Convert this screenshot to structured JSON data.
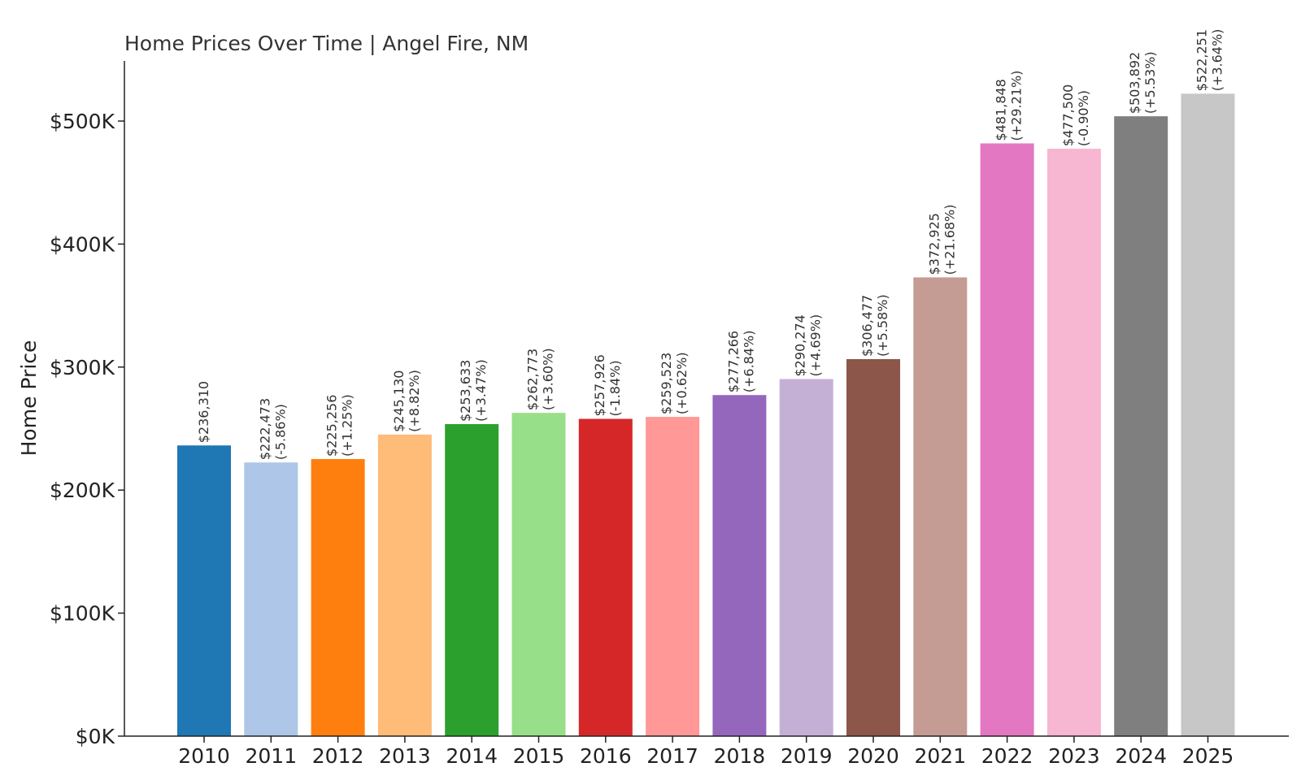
{
  "chart_data": {
    "type": "bar",
    "title": "Home Prices Over Time | Angel Fire, NM",
    "xlabel": "",
    "ylabel": "Home Price",
    "ylim": [
      0,
      550000
    ],
    "yticks": [
      0,
      100000,
      200000,
      300000,
      400000,
      500000
    ],
    "ytick_labels": [
      "$0K",
      "$100K",
      "$200K",
      "$300K",
      "$400K",
      "$500K"
    ],
    "grid": false,
    "categories": [
      "2010",
      "2011",
      "2012",
      "2013",
      "2014",
      "2015",
      "2016",
      "2017",
      "2018",
      "2019",
      "2020",
      "2021",
      "2022",
      "2023",
      "2024",
      "2025"
    ],
    "values": [
      236310,
      222473,
      225256,
      245130,
      253633,
      262773,
      257926,
      259523,
      277266,
      290274,
      306477,
      372925,
      481848,
      477500,
      503892,
      522251
    ],
    "value_labels": [
      "$236,310",
      "$222,473",
      "$225,256",
      "$245,130",
      "$253,633",
      "$262,773",
      "$257,926",
      "$259,523",
      "$277,266",
      "$290,274",
      "$306,477",
      "$372,925",
      "$481,848",
      "$477,500",
      "$503,892",
      "$522,251"
    ],
    "change_labels": [
      "",
      "(-5.86%)",
      "(+1.25%)",
      "(+8.82%)",
      "(+3.47%)",
      "(+3.60%)",
      "(-1.84%)",
      "(+0.62%)",
      "(+6.84%)",
      "(+4.69%)",
      "(+5.58%)",
      "(+21.68%)",
      "(+29.21%)",
      "(-0.90%)",
      "(+5.53%)",
      "(+3.64%)"
    ],
    "colors": [
      "#1f77b4",
      "#aec7e8",
      "#ff7f0e",
      "#ffbb78",
      "#2ca02c",
      "#98df8a",
      "#d62728",
      "#ff9896",
      "#9467bd",
      "#c5b0d5",
      "#8c564b",
      "#c49c94",
      "#e377c2",
      "#f7b6d2",
      "#7f7f7f",
      "#c7c7c7"
    ]
  }
}
